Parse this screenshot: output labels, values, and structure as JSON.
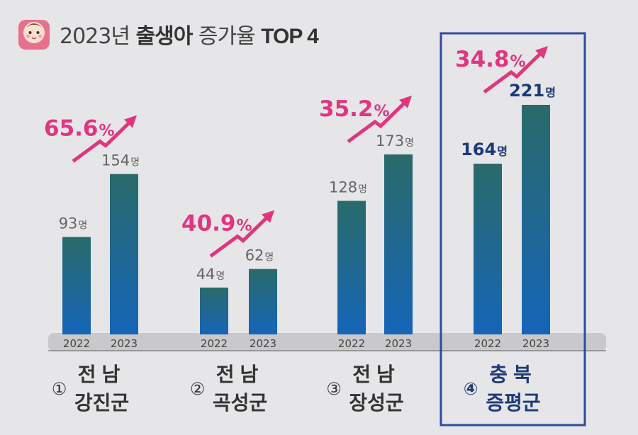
{
  "header": {
    "year": "2023년",
    "bold_word": "출생아",
    "normal_word": "증가율",
    "suffix": "TOP 4"
  },
  "icon": "baby-face-icon",
  "colors": {
    "background": "#e6e6e8",
    "growth_pink": "#e0357f",
    "highlight_navy": "#1d3a78",
    "highlight_border": "#2f4b9e",
    "bar_top": "#2a6a6a",
    "bar_bottom": "#1565b8",
    "baseline_band": "#c9c9cc",
    "value_gray": "#666666"
  },
  "chart_data": {
    "type": "bar",
    "unit": "명",
    "series_names": [
      "2022",
      "2023"
    ],
    "groups": [
      {
        "rank": "①",
        "region": "전남",
        "county": "강진군",
        "values": [
          93,
          154
        ],
        "growth": "65.6",
        "highlight": false
      },
      {
        "rank": "②",
        "region": "전남",
        "county": "곡성군",
        "values": [
          44,
          62
        ],
        "growth": "40.9",
        "highlight": false
      },
      {
        "rank": "③",
        "region": "전남",
        "county": "장성군",
        "values": [
          128,
          173
        ],
        "growth": "35.2",
        "highlight": false
      },
      {
        "rank": "④",
        "region": "충북",
        "county": "증평군",
        "values": [
          164,
          221
        ],
        "growth": "34.8",
        "highlight": true
      }
    ],
    "percent_sign": "%",
    "ylim": [
      0,
      221
    ]
  }
}
